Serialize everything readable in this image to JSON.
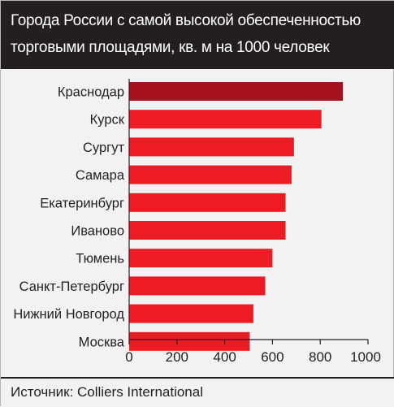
{
  "header": {
    "line1": "Города России с самой высокой обеспеченностью",
    "line2": "торговыми площадями, кв. м на 1000 человек"
  },
  "footer": {
    "source": "Источник: Colliers International"
  },
  "colors": {
    "highlight": "#a5111c",
    "bar": "#ed1c24",
    "header_bg": "#231f20",
    "background": "#f2f2f2"
  },
  "chart_data": {
    "type": "bar",
    "orientation": "horizontal",
    "title": "Города России с самой высокой обеспеченностью торговыми площадями, кв. м на 1000 человек",
    "categories": [
      "Краснодар",
      "Курск",
      "Сургут",
      "Самара",
      "Екатеринбург",
      "Иваново",
      "Тюмень",
      "Санкт-Петербург",
      "Нижний Новгород",
      "Москва"
    ],
    "values": [
      895,
      805,
      690,
      680,
      655,
      655,
      600,
      570,
      520,
      505
    ],
    "highlight_index": 0,
    "xlim": [
      0,
      1000
    ],
    "xticks": [
      0,
      200,
      400,
      600,
      800,
      1000
    ],
    "grid": false,
    "legend": false
  }
}
